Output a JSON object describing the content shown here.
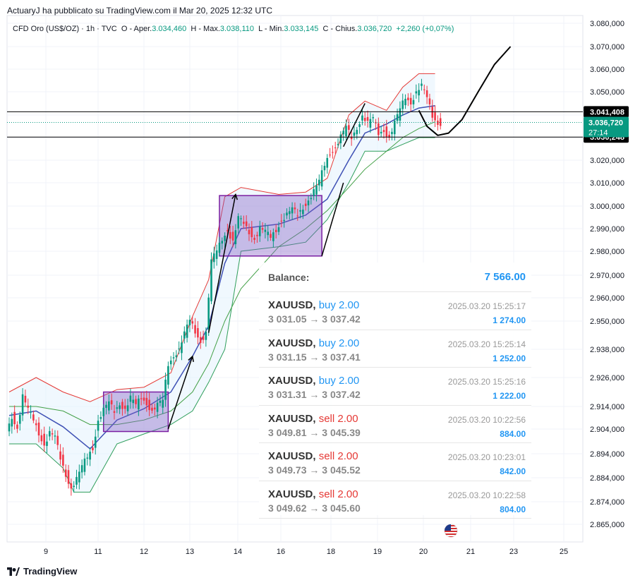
{
  "header": {
    "published": "ActuaryJ ha pubblicato su TradingView.com il Mar 20, 2025 12:32 UTC"
  },
  "legend": {
    "symbol": "CFD Oro (US$/OZ) · 1h · TVC",
    "open_label": "O - Aper.",
    "open_value": "3.034,460",
    "high_label": "H - Max.",
    "high_value": "3.038,110",
    "low_label": "L - Min.",
    "low_value": "3.033,145",
    "close_label": "C - Chius.",
    "close_value": "3.036,720",
    "change": "+2,260 (+0,07%)"
  },
  "chart_data": {
    "type": "candlestick",
    "x_ticks": [
      "9",
      "11",
      "12",
      "13",
      "14",
      "16",
      "18",
      "19",
      "20",
      "21",
      "23",
      "25"
    ],
    "y_ticks": [
      "3.080,000",
      "3.070,000",
      "3.060,000",
      "3.050,000",
      "3.040,000",
      "3.030,000",
      "3.020,000",
      "3.010,000",
      "3.000,000",
      "2.990,000",
      "2.980,000",
      "2.970,000",
      "2.960,000",
      "2.950,000",
      "2.938,000",
      "2.926,000",
      "2.914,000",
      "2.904,000",
      "2.894,000",
      "2.884,000",
      "2.874,000",
      "2.865,000"
    ],
    "y_range": [
      2865,
      3080
    ],
    "price_lines": [
      {
        "label": "3.041,408",
        "value": 3041.408
      },
      {
        "label": "3.030,248",
        "value": 3030.248
      }
    ],
    "current": {
      "label": "3.036,720",
      "timer": "27:14",
      "value": 3036.72
    },
    "price_path": [
      [
        0,
        2902
      ],
      [
        2,
        2910
      ],
      [
        4,
        2905
      ],
      [
        6,
        2918
      ],
      [
        8,
        2912
      ],
      [
        10,
        2908
      ],
      [
        12,
        2903
      ],
      [
        14,
        2898
      ],
      [
        16,
        2902
      ],
      [
        18,
        2900
      ],
      [
        20,
        2892
      ],
      [
        22,
        2886
      ],
      [
        24,
        2880
      ],
      [
        26,
        2883
      ],
      [
        28,
        2888
      ],
      [
        30,
        2893
      ],
      [
        32,
        2897
      ],
      [
        34,
        2908
      ],
      [
        36,
        2912
      ],
      [
        38,
        2915
      ],
      [
        40,
        2912
      ],
      [
        42,
        2916
      ],
      [
        44,
        2913
      ],
      [
        46,
        2917
      ],
      [
        48,
        2914
      ],
      [
        50,
        2918
      ],
      [
        52,
        2916
      ],
      [
        54,
        2912
      ],
      [
        56,
        2914
      ],
      [
        58,
        2916
      ],
      [
        60,
        2932
      ],
      [
        62,
        2936
      ],
      [
        64,
        2938
      ],
      [
        66,
        2944
      ],
      [
        68,
        2950
      ],
      [
        70,
        2946
      ],
      [
        72,
        2942
      ],
      [
        74,
        2945
      ],
      [
        76,
        2975
      ],
      [
        78,
        2980
      ],
      [
        80,
        2986
      ],
      [
        82,
        2990
      ],
      [
        84,
        2984
      ],
      [
        86,
        2994
      ],
      [
        88,
        2992
      ],
      [
        90,
        2989
      ],
      [
        92,
        2986
      ],
      [
        94,
        2990
      ],
      [
        96,
        2988
      ],
      [
        98,
        2986
      ],
      [
        100,
        2990
      ],
      [
        102,
        2994
      ],
      [
        104,
        2996
      ],
      [
        106,
        2998
      ],
      [
        108,
        2996
      ],
      [
        110,
        3000
      ],
      [
        112,
        3003
      ],
      [
        114,
        3006
      ],
      [
        116,
        3010
      ],
      [
        118,
        3018
      ],
      [
        120,
        3024
      ],
      [
        122,
        3026
      ],
      [
        124,
        3030
      ],
      [
        126,
        3034
      ],
      [
        128,
        3030
      ],
      [
        130,
        3035
      ],
      [
        132,
        3040
      ],
      [
        134,
        3036
      ],
      [
        136,
        3038
      ],
      [
        138,
        3032
      ],
      [
        140,
        3034
      ],
      [
        142,
        3030
      ],
      [
        144,
        3036
      ],
      [
        146,
        3042
      ],
      [
        148,
        3048
      ],
      [
        150,
        3046
      ],
      [
        152,
        3050
      ],
      [
        154,
        3052
      ],
      [
        156,
        3047
      ],
      [
        158,
        3040
      ],
      [
        160,
        3037
      ],
      [
        161,
        3036.72
      ]
    ],
    "bands": {
      "upper": [
        [
          0,
          2920
        ],
        [
          10,
          2926
        ],
        [
          20,
          2920
        ],
        [
          30,
          2916
        ],
        [
          40,
          2921
        ],
        [
          50,
          2922
        ],
        [
          60,
          2928
        ],
        [
          68,
          2952
        ],
        [
          74,
          2968
        ],
        [
          80,
          3004
        ],
        [
          86,
          3008
        ],
        [
          100,
          3005
        ],
        [
          110,
          3006
        ],
        [
          118,
          3012
        ],
        [
          126,
          3040
        ],
        [
          132,
          3046
        ],
        [
          140,
          3042
        ],
        [
          146,
          3052
        ],
        [
          152,
          3058
        ],
        [
          158,
          3058
        ]
      ],
      "lower": [
        [
          0,
          2898
        ],
        [
          10,
          2898
        ],
        [
          20,
          2888
        ],
        [
          24,
          2878
        ],
        [
          30,
          2878
        ],
        [
          40,
          2898
        ],
        [
          50,
          2902
        ],
        [
          60,
          2906
        ],
        [
          68,
          2912
        ],
        [
          74,
          2924
        ],
        [
          80,
          2938
        ],
        [
          86,
          2980
        ],
        [
          100,
          2982
        ],
        [
          110,
          2984
        ],
        [
          118,
          2994
        ],
        [
          126,
          3010
        ],
        [
          132,
          3024
        ],
        [
          140,
          3024
        ],
        [
          146,
          3027
        ],
        [
          152,
          3030
        ],
        [
          158,
          3030
        ]
      ],
      "mid_blue": [
        [
          0,
          2910
        ],
        [
          10,
          2912
        ],
        [
          20,
          2905
        ],
        [
          30,
          2896
        ],
        [
          40,
          2908
        ],
        [
          50,
          2913
        ],
        [
          60,
          2920
        ],
        [
          68,
          2935
        ],
        [
          74,
          2948
        ],
        [
          80,
          2975
        ],
        [
          86,
          2990
        ],
        [
          100,
          2992
        ],
        [
          110,
          2996
        ],
        [
          118,
          3003
        ],
        [
          126,
          3020
        ],
        [
          132,
          3032
        ],
        [
          140,
          3036
        ],
        [
          146,
          3040
        ],
        [
          152,
          3043
        ],
        [
          158,
          3044
        ]
      ],
      "mid_green": [
        [
          0,
          2914
        ],
        [
          10,
          2914
        ],
        [
          20,
          2912
        ],
        [
          30,
          2906
        ],
        [
          40,
          2906
        ],
        [
          50,
          2908
        ],
        [
          60,
          2912
        ],
        [
          68,
          2920
        ],
        [
          74,
          2932
        ],
        [
          80,
          2950
        ],
        [
          86,
          2964
        ],
        [
          100,
          2982
        ],
        [
          110,
          2990
        ],
        [
          118,
          2998
        ],
        [
          126,
          3008
        ],
        [
          132,
          3016
        ],
        [
          140,
          3024
        ],
        [
          146,
          3030
        ],
        [
          152,
          3034
        ],
        [
          158,
          3037
        ]
      ]
    },
    "rectangles": [
      {
        "from": [
          35,
          2920
        ],
        "to": [
          59,
          2903
        ]
      },
      {
        "from": [
          78,
          3004.5
        ],
        "to": [
          116,
          2978
        ]
      }
    ],
    "drawn_arrows": [
      {
        "from": [
          59,
          2904
        ],
        "to": [
          68,
          2935
        ]
      },
      {
        "from": [
          74,
          2945
        ],
        "to": [
          84,
          3005
        ]
      }
    ],
    "drawn_lines": [
      {
        "from": [
          116,
          2978
        ],
        "to": [
          124,
          3010
        ]
      },
      {
        "from": [
          124,
          3026
        ],
        "to": [
          132,
          3045
        ]
      }
    ],
    "projection": [
      [
        152,
        3042
      ],
      [
        155,
        3035
      ],
      [
        159,
        3031
      ],
      [
        163,
        3032
      ],
      [
        168,
        3038
      ],
      [
        174,
        3050
      ],
      [
        180,
        3062
      ],
      [
        186,
        3070
      ]
    ]
  },
  "balance": {
    "label": "Balance:",
    "value": "7 566.00"
  },
  "trades": [
    {
      "symbol": "XAUUSD,",
      "direction": "buy",
      "dir_text": "buy 2.00",
      "prices": "3 031.05 → 3 037.42",
      "time": "2025.03.20 15:25:17",
      "profit": "1 274.00"
    },
    {
      "symbol": "XAUUSD,",
      "direction": "buy",
      "dir_text": "buy 2.00",
      "prices": "3 031.15 → 3 037.41",
      "time": "2025.03.20 15:25:14",
      "profit": "1 252.00"
    },
    {
      "symbol": "XAUUSD,",
      "direction": "buy",
      "dir_text": "buy 2.00",
      "prices": "3 031.31 → 3 037.42",
      "time": "2025.03.20 15:25:16",
      "profit": "1 222.00"
    },
    {
      "symbol": "XAUUSD,",
      "direction": "sell",
      "dir_text": "sell 2.00",
      "prices": "3 049.81 → 3 045.39",
      "time": "2025.03.20 10:22:56",
      "profit": "884.00"
    },
    {
      "symbol": "XAUUSD,",
      "direction": "sell",
      "dir_text": "sell 2.00",
      "prices": "3 049.73 → 3 045.52",
      "time": "2025.03.20 10:23:01",
      "profit": "842.00"
    },
    {
      "symbol": "XAUUSD,",
      "direction": "sell",
      "dir_text": "sell 2.00",
      "prices": "3 049.62 → 3 045.60",
      "time": "2025.03.20 10:22:58",
      "profit": "804.00"
    }
  ],
  "footer": {
    "brand": "TradingView"
  },
  "icons": {
    "flag": "us-flag-icon",
    "logo": "tradingview-logo-icon"
  },
  "colors": {
    "up": "#089981",
    "down": "#f23645",
    "band_red": "#e53935",
    "band_green": "#2e9e5b",
    "band_blue": "#3f51b5",
    "rect": "#7e57c2"
  }
}
